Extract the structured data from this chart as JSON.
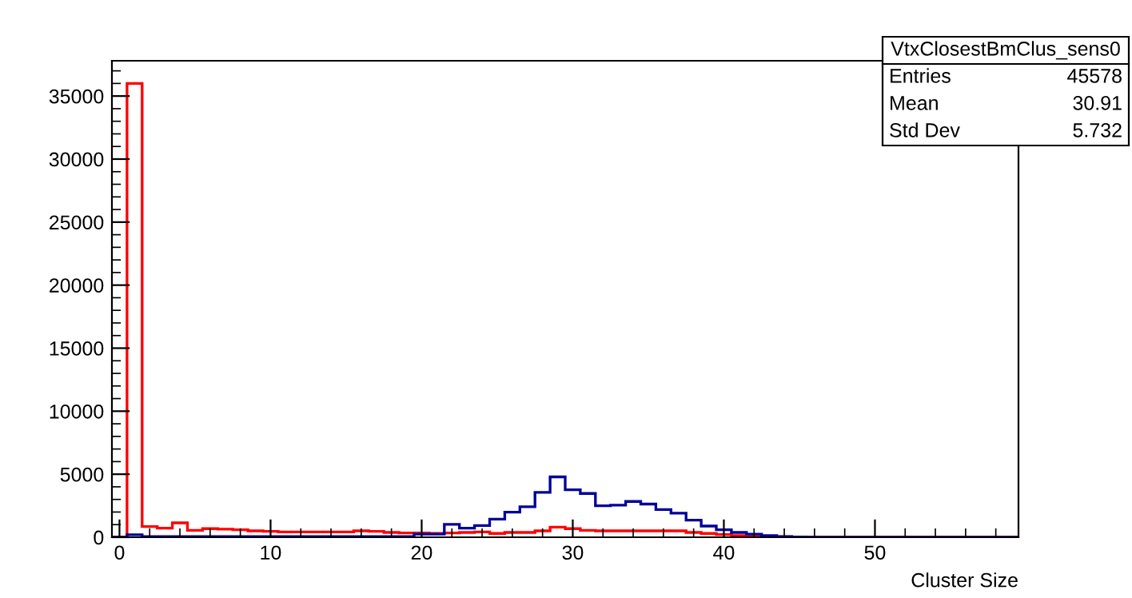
{
  "chart_data": {
    "type": "histogram",
    "xlabel": "Cluster Size",
    "bins": [
      -0.5,
      0.5,
      1.5,
      2.5,
      3.5,
      4.5,
      5.5,
      6.5,
      7.5,
      8.5,
      9.5,
      10.5,
      11.5,
      12.5,
      13.5,
      14.5,
      15.5,
      16.5,
      17.5,
      18.5,
      19.5,
      20.5,
      21.5,
      22.5,
      23.5,
      24.5,
      25.5,
      26.5,
      27.5,
      28.5,
      29.5,
      30.5,
      31.5,
      32.5,
      33.5,
      34.5,
      35.5,
      36.5,
      37.5,
      38.5,
      39.5,
      40.5,
      41.5,
      42.5,
      43.5,
      44.5,
      45.5,
      46.5,
      47.5,
      48.5,
      49.5,
      50.5,
      51.5,
      52.5,
      53.5,
      54.5,
      55.5,
      56.5,
      57.5,
      58.5,
      59.5
    ],
    "series": [
      {
        "color": "#ff0000",
        "values": [
          0,
          36000,
          850,
          720,
          1140,
          550,
          680,
          640,
          590,
          510,
          470,
          420,
          420,
          420,
          420,
          420,
          510,
          470,
          380,
          340,
          340,
          300,
          340,
          380,
          420,
          300,
          380,
          380,
          510,
          800,
          680,
          550,
          510,
          510,
          510,
          510,
          510,
          510,
          380,
          300,
          210,
          130,
          80,
          30,
          30,
          20,
          0,
          0,
          0,
          0,
          0,
          0,
          0,
          0,
          0,
          0,
          0,
          0,
          0,
          0
        ]
      },
      {
        "color": "#000099",
        "values": [
          0,
          200,
          50,
          50,
          50,
          50,
          50,
          50,
          50,
          50,
          50,
          50,
          50,
          50,
          50,
          50,
          50,
          50,
          50,
          50,
          250,
          250,
          1020,
          720,
          930,
          1440,
          1990,
          2420,
          3560,
          4790,
          3770,
          3470,
          2500,
          2540,
          2840,
          2630,
          2200,
          1910,
          1360,
          890,
          590,
          380,
          250,
          130,
          60,
          20,
          0,
          0,
          0,
          0,
          0,
          0,
          0,
          0,
          0,
          0,
          0,
          0,
          0,
          0
        ]
      }
    ],
    "xlim": [
      -0.5,
      59.5
    ],
    "ylim": [
      0,
      37800
    ],
    "xticks": [
      0,
      10,
      20,
      30,
      40,
      50
    ],
    "yticks": [
      0,
      5000,
      10000,
      15000,
      20000,
      25000,
      30000,
      35000
    ],
    "grid": false,
    "legend": false,
    "annotations": [
      "VtxClosestBmClus_sens0",
      "Entries",
      "45578",
      "Mean",
      "30.91",
      "Std Dev",
      "5.732"
    ]
  }
}
